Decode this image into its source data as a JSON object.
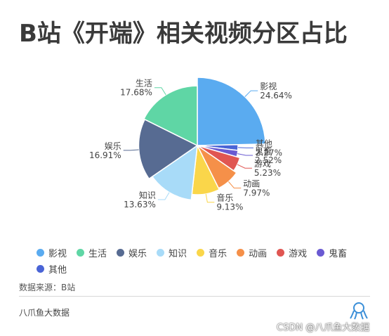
{
  "title": "B站《开端》相关视频分区占比",
  "source": "数据来源：B站",
  "brand": "八爪鱼大数据",
  "watermark": "CSDN @八爪鱼大数据",
  "chart_data": {
    "type": "pie",
    "title": "B站《开端》相关视频分区占比",
    "rose": true,
    "legend_position": "bottom",
    "slices": [
      {
        "name": "影视",
        "value": 24.64,
        "label": "24.64%",
        "color": "#5aabf0"
      },
      {
        "name": "其他",
        "value": 2.27,
        "label": "2.27%",
        "color": "#4a64d6"
      },
      {
        "name": "鬼畜",
        "value": 2.52,
        "label": "2.52%",
        "color": "#6a5ad2"
      },
      {
        "name": "游戏",
        "value": 5.23,
        "label": "5.23%",
        "color": "#e05652"
      },
      {
        "name": "动画",
        "value": 7.97,
        "label": "7.97%",
        "color": "#f59049"
      },
      {
        "name": "音乐",
        "value": 9.13,
        "label": "9.13%",
        "color": "#fad64a"
      },
      {
        "name": "知识",
        "value": 13.63,
        "label": "13.63%",
        "color": "#a8dbf8"
      },
      {
        "name": "娱乐",
        "value": 16.91,
        "label": "16.91%",
        "color": "#576b92"
      },
      {
        "name": "生活",
        "value": 17.68,
        "label": "17.68%",
        "color": "#5fd6a5"
      }
    ],
    "legend_order": [
      "影视",
      "生活",
      "娱乐",
      "知识",
      "音乐",
      "动画",
      "游戏",
      "鬼畜",
      "其他"
    ]
  }
}
